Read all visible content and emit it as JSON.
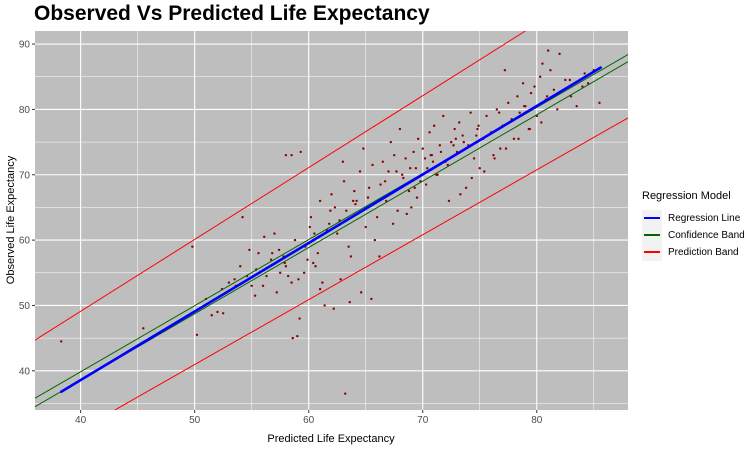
{
  "chart_data": {
    "type": "scatter",
    "title": "Observed Vs Predicted Life Expectancy",
    "xlabel": "Predicted Life Expectancy",
    "ylabel": "Observed Life Expectancy",
    "xlim": [
      36,
      88
    ],
    "ylim": [
      34,
      92
    ],
    "xticks": [
      40,
      50,
      60,
      70,
      80
    ],
    "yticks": [
      40,
      50,
      60,
      70,
      80,
      90
    ],
    "grid": true,
    "legend": {
      "title": "Regression Model",
      "placement": "right",
      "entries": [
        {
          "label": "Regression Line",
          "color": "#0000ff"
        },
        {
          "label": "Confidence Band",
          "color": "#006400"
        },
        {
          "label": "Prediction Band",
          "color": "#ff0000"
        }
      ]
    },
    "colors": {
      "points": "#8b0000",
      "panel": "#bebebe",
      "grid": "#ffffff"
    },
    "series": [
      {
        "name": "Regression Line",
        "kind": "line",
        "x": [
          38.3,
          85.6
        ],
        "y": [
          36.8,
          86.4
        ]
      },
      {
        "name": "Confidence Band",
        "kind": "line",
        "x": [
          36,
          88
        ],
        "y": [
          35.8,
          88.4
        ]
      },
      {
        "name": "Confidence Band",
        "kind": "line",
        "x": [
          36,
          88
        ],
        "y": [
          34.5,
          87.3
        ]
      },
      {
        "name": "Prediction Band",
        "kind": "line",
        "x": [
          36,
          79
        ],
        "y": [
          44.7,
          92
        ]
      },
      {
        "name": "Prediction Band",
        "kind": "line",
        "x": [
          43,
          88
        ],
        "y": [
          34,
          78.7
        ]
      }
    ],
    "points": {
      "x": [
        38.3,
        45.5,
        49.8,
        50.2,
        51.0,
        51.5,
        52.0,
        52.5,
        53.0,
        53.5,
        54.0,
        54.2,
        54.8,
        55.0,
        55.3,
        55.6,
        56.0,
        56.3,
        56.8,
        57.0,
        57.2,
        57.5,
        57.8,
        58.0,
        58.2,
        58.5,
        58.5,
        58.8,
        59.0,
        59.1,
        59.3,
        59.6,
        59.9,
        60.0,
        60.2,
        60.5,
        60.6,
        60.8,
        61.0,
        61.2,
        61.4,
        61.8,
        62.0,
        62.3,
        62.5,
        62.8,
        63.0,
        63.1,
        63.3,
        63.5,
        63.7,
        64.0,
        64.2,
        64.5,
        64.8,
        65.0,
        65.3,
        65.6,
        65.8,
        66.0,
        66.3,
        66.5,
        66.8,
        67.0,
        67.2,
        67.5,
        67.8,
        68.0,
        68.2,
        68.5,
        68.8,
        69.0,
        69.2,
        69.4,
        69.6,
        69.8,
        70.0,
        70.2,
        70.4,
        70.6,
        70.8,
        71.0,
        71.2,
        71.5,
        71.8,
        72.0,
        72.2,
        72.5,
        72.8,
        73.0,
        73.2,
        73.5,
        73.8,
        74.0,
        74.2,
        74.5,
        74.8,
        75.0,
        75.3,
        75.6,
        76.0,
        76.2,
        76.5,
        76.8,
        77.0,
        77.2,
        77.5,
        77.8,
        78.0,
        78.3,
        78.5,
        78.8,
        79.0,
        79.3,
        79.5,
        79.8,
        80.0,
        80.3,
        80.5,
        80.8,
        81.0,
        81.2,
        81.5,
        81.8,
        82.0,
        82.5,
        83.0,
        83.5,
        84.0,
        84.5,
        85.0,
        85.5,
        63.2,
        58.6,
        58.0,
        59.2,
        65.5,
        61.0,
        60.4,
        62.2,
        63.6,
        64.6,
        66.2,
        67.4,
        68.6,
        69.5,
        70.3,
        71.3,
        72.3,
        73.3,
        74.3,
        75.4,
        76.3,
        77.3,
        78.4,
        79.4,
        80.4,
        72.7,
        71.6,
        70.9,
        73.6,
        74.7,
        67.7,
        68.3,
        69.3,
        65.2,
        64.1,
        62.7,
        61.6,
        60.9,
        59.7,
        57.4,
        56.7,
        55.4,
        54.6,
        53.6,
        52.4,
        56.1,
        57.9,
        60.1,
        61.9,
        63.9,
        66.7,
        68.9,
        70.7,
        72.9,
        74.9,
        76.7,
        78.9,
        80.9,
        82.9,
        84.2
      ],
      "y": [
        44.5,
        46.5,
        59.0,
        45.5,
        51.0,
        48.5,
        49.0,
        48.8,
        53.5,
        54.0,
        56.0,
        63.5,
        58.5,
        53.0,
        51.5,
        58.0,
        53.0,
        54.5,
        58.0,
        61.0,
        52.0,
        55.0,
        57.5,
        56.0,
        54.5,
        53.5,
        73.0,
        60.0,
        45.3,
        54.0,
        73.5,
        55.0,
        57.0,
        59.5,
        63.5,
        61.0,
        56.0,
        58.0,
        66.0,
        53.5,
        50.0,
        62.5,
        67.0,
        65.0,
        61.0,
        54.0,
        72.0,
        69.0,
        64.5,
        59.0,
        57.5,
        67.5,
        66.0,
        70.5,
        74.0,
        62.0,
        68.0,
        71.5,
        60.0,
        63.5,
        68.5,
        72.0,
        66.0,
        70.5,
        75.0,
        73.0,
        64.5,
        77.0,
        70.0,
        72.5,
        67.5,
        65.0,
        73.5,
        71.0,
        75.5,
        69.0,
        74.0,
        72.5,
        71.0,
        76.5,
        73.0,
        77.5,
        70.0,
        74.5,
        79.0,
        72.0,
        71.5,
        75.0,
        77.0,
        73.5,
        78.0,
        76.0,
        68.0,
        74.5,
        79.5,
        72.5,
        77.0,
        71.0,
        75.5,
        79.0,
        76.5,
        73.0,
        80.0,
        74.0,
        77.5,
        86.0,
        81.0,
        78.5,
        75.5,
        82.0,
        79.5,
        84.0,
        80.5,
        77.0,
        82.5,
        83.5,
        79.0,
        85.0,
        87.0,
        81.5,
        89.0,
        86.0,
        83.0,
        80.0,
        88.5,
        84.5,
        82.0,
        80.5,
        83.5,
        84.0,
        86.0,
        81.0,
        36.5,
        45.0,
        73.0,
        48.0,
        51.0,
        52.5,
        56.5,
        49.5,
        50.5,
        52.0,
        57.5,
        62.5,
        64.0,
        66.5,
        68.5,
        70.0,
        66.0,
        67.0,
        69.5,
        70.5,
        72.5,
        74.0,
        75.5,
        77.0,
        78.0,
        74.5,
        73.5,
        72.0,
        75.0,
        76.0,
        70.5,
        69.5,
        68.0,
        66.5,
        65.5,
        63.0,
        61.5,
        60.5,
        59.0,
        58.5,
        57.0,
        55.5,
        54.5,
        53.0,
        52.5,
        60.5,
        56.5,
        62.0,
        64.5,
        66.0,
        69.0,
        71.0,
        73.0,
        75.5,
        77.5,
        79.5,
        80.5,
        82.0,
        84.5,
        85.5
      ]
    }
  }
}
